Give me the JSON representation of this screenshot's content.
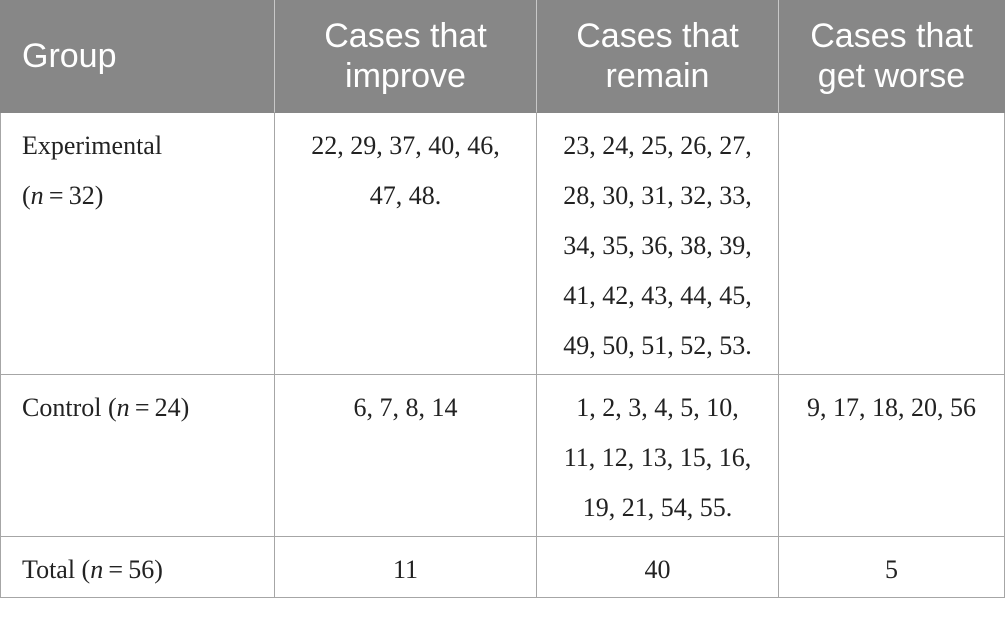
{
  "table": {
    "header": [
      [
        "Group"
      ],
      [
        "Cases that",
        "improve"
      ],
      [
        "Cases that",
        "remain"
      ],
      [
        "Cases that",
        "get worse"
      ]
    ],
    "rows": [
      {
        "group": [
          [
            "Experimental"
          ],
          [
            "(",
            {
              "italic": "n"
            },
            " = 32)"
          ]
        ],
        "cells": [
          [
            "22, 29, 37, 40, 46,",
            "47, 48."
          ],
          [
            "23, 24, 25, 26, 27,",
            "28, 30, 31, 32, 33,",
            "34, 35, 36, 38, 39,",
            "41, 42, 43, 44, 45,",
            "49, 50, 51, 52, 53."
          ],
          []
        ]
      },
      {
        "group": [
          [
            "Control (",
            {
              "italic": "n"
            },
            " = 24)"
          ]
        ],
        "cells": [
          [
            "6, 7, 8, 14"
          ],
          [
            "1, 2, 3, 4, 5, 10,",
            "11, 12, 13, 15, 16,",
            "19, 21, 54, 55."
          ],
          [
            "9, 17, 18, 20, 56"
          ]
        ]
      },
      {
        "group": [
          [
            "Total (",
            {
              "italic": "n"
            },
            " = 56)"
          ]
        ],
        "cells": [
          [
            11
          ],
          [
            40
          ],
          [
            5
          ]
        ]
      }
    ]
  }
}
